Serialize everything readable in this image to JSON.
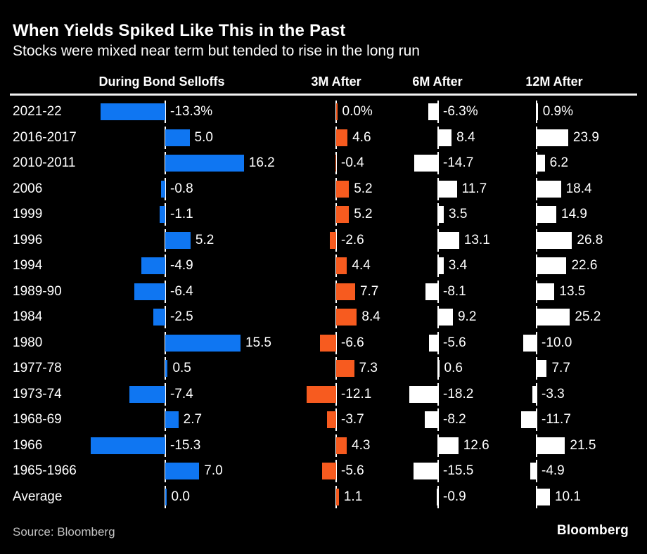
{
  "header": {
    "title": "When Yields Spiked Like This in the Past",
    "subtitle": "Stocks were mixed near term but tended to rise in the long run"
  },
  "footer": {
    "source": "Source: Bloomberg",
    "logo": "Bloomberg"
  },
  "colors": {
    "background": "#000000",
    "blue": "#0f76f2",
    "orange": "#f75b1f",
    "white_bar": "#ffffff",
    "rule": "#f2f2f2",
    "source_text": "#c2c2c2",
    "text": "#ffffff"
  },
  "chart_data": {
    "type": "bar",
    "orientation": "horizontal",
    "title": "When Yields Spiked Like This in the Past",
    "subtitle": "Stocks were mixed near term but tended to rise in the long run",
    "first_row_value_suffix": "%",
    "grid": false,
    "legend_position": "column-headers",
    "categories": [
      "2021-22",
      "2016-2017",
      "2010-2011",
      "2006",
      "1999",
      "1996",
      "1994",
      "1989-90",
      "1984",
      "1980",
      "1977-78",
      "1973-74",
      "1968-69",
      "1966",
      "1965-1966",
      "Average"
    ],
    "series": [
      {
        "name": "During Bond Selloffs",
        "slug": "during-bond-selloffs",
        "color": "#0f76f2",
        "values": [
          -13.3,
          5.0,
          16.2,
          -0.8,
          -1.1,
          5.2,
          -4.9,
          -6.4,
          -2.5,
          15.5,
          0.5,
          -7.4,
          2.7,
          -15.3,
          7.0,
          0.0
        ]
      },
      {
        "name": "3M After",
        "slug": "3m-after",
        "color": "#f75b1f",
        "values": [
          0.0,
          4.6,
          -0.4,
          5.2,
          5.2,
          -2.6,
          4.4,
          7.7,
          8.4,
          -6.6,
          7.3,
          -12.1,
          -3.7,
          4.3,
          -5.6,
          1.1
        ]
      },
      {
        "name": "6M After",
        "slug": "6m-after",
        "color": "#ffffff",
        "values": [
          -6.3,
          8.4,
          -14.7,
          11.7,
          3.5,
          13.1,
          3.4,
          -8.1,
          9.2,
          -5.6,
          0.6,
          -18.2,
          -8.2,
          12.6,
          -15.5,
          -0.9
        ]
      },
      {
        "name": "12M After",
        "slug": "12m-after",
        "color": "#ffffff",
        "values": [
          0.9,
          23.9,
          6.2,
          18.4,
          14.9,
          26.8,
          22.6,
          13.5,
          25.2,
          -10.0,
          7.7,
          -3.3,
          -11.7,
          21.5,
          -4.9,
          10.1
        ]
      }
    ]
  }
}
